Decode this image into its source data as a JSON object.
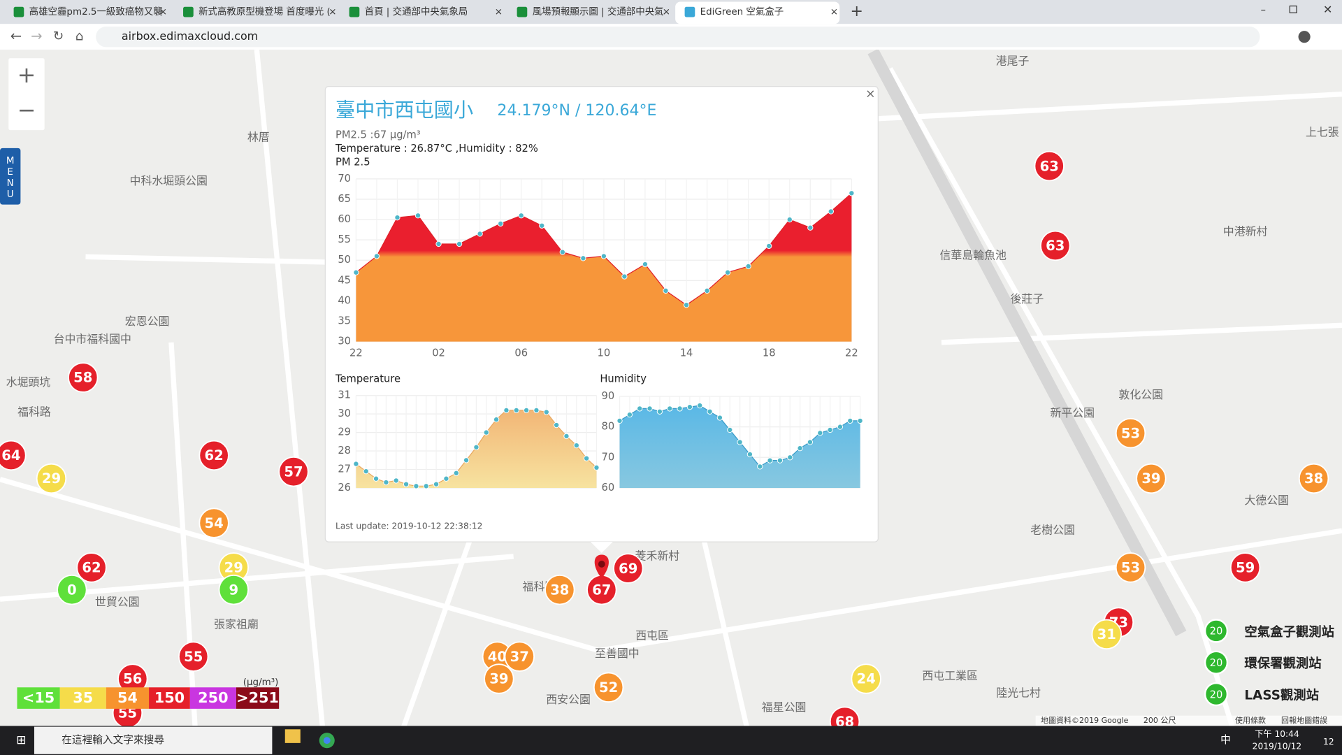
{
  "browser": {
    "tabs": [
      "高雄空霾pm2.5一級致癌物又襲",
      "新式高教原型機登場 首度曝光 (",
      "首頁 | 交通部中央氣象局",
      "風場預報顯示圖 | 交通部中央氣",
      "EdiGreen 空氣盒子"
    ],
    "url": "airbox.edimaxcloud.com"
  },
  "map": {
    "menu": "MENU",
    "labels": [
      "港尾子",
      "林厝",
      "中科水堀頭公園",
      "宏恩公園",
      "台中市福科國中",
      "水堀頭坑",
      "福科路",
      "世貿公園",
      "張家祖廟",
      "中港新村",
      "後莊子",
      "敦化公園",
      "新平公園",
      "西屯區",
      "菱禾新村",
      "西屯工業區",
      "陸光七村",
      "大德公園",
      "老樹公園",
      "上七張",
      "福星公園",
      "西安公園",
      "至善國中",
      "信華島輪魚池",
      "福科路"
    ],
    "markers": [
      {
        "value": 63,
        "color": "#e5202a"
      },
      {
        "value": 63,
        "color": "#e5202a"
      },
      {
        "value": 58,
        "color": "#e5202a"
      },
      {
        "value": 64,
        "color": "#e5202a"
      },
      {
        "value": 29,
        "color": "#f5dc4a"
      },
      {
        "value": 62,
        "color": "#e5202a"
      },
      {
        "value": 57,
        "color": "#e5202a"
      },
      {
        "value": 54,
        "color": "#f7932e"
      },
      {
        "value": 62,
        "color": "#e5202a"
      },
      {
        "value": 0,
        "color": "#5fe03a"
      },
      {
        "value": 29,
        "color": "#f5dc4a"
      },
      {
        "value": 9,
        "color": "#5fe03a"
      },
      {
        "value": 55,
        "color": "#e5202a"
      },
      {
        "value": 56,
        "color": "#e5202a"
      },
      {
        "value": 55,
        "color": "#e5202a"
      },
      {
        "value": 38,
        "color": "#f7932e"
      },
      {
        "value": 69,
        "color": "#e5202a"
      },
      {
        "value": 40,
        "color": "#f7932e"
      },
      {
        "value": 37,
        "color": "#f7932e"
      },
      {
        "value": 39,
        "color": "#f7932e"
      },
      {
        "value": 52,
        "color": "#f7932e"
      },
      {
        "value": 24,
        "color": "#f5dc4a"
      },
      {
        "value": 68,
        "color": "#e5202a"
      },
      {
        "value": 53,
        "color": "#f7932e"
      },
      {
        "value": 39,
        "color": "#f7932e"
      },
      {
        "value": 38,
        "color": "#f7932e"
      },
      {
        "value": 53,
        "color": "#f7932e"
      },
      {
        "value": 59,
        "color": "#e5202a"
      },
      {
        "value": 73,
        "color": "#e5202a"
      },
      {
        "value": 31,
        "color": "#f5dc4a"
      },
      {
        "value": 67,
        "color": "#e5202a"
      }
    ],
    "legend": {
      "unit": "(μg/m³)",
      "items": [
        {
          "label": "<15",
          "color": "#5fe03a"
        },
        {
          "label": "35",
          "color": "#f5dc4a"
        },
        {
          "label": "54",
          "color": "#f7932e"
        },
        {
          "label": "150",
          "color": "#e5202a"
        },
        {
          "label": "250",
          "color": "#c936e0"
        },
        {
          "label": ">251",
          "color": "#8b0b1a"
        }
      ]
    },
    "stations": {
      "badge": "20",
      "items": [
        "空氣盒子觀測站",
        "環保署觀測站",
        "LASS觀測站"
      ]
    },
    "footer": [
      "地圖資料©2019 Google",
      "200 公尺",
      "使用條款",
      "回報地圖錯誤"
    ]
  },
  "popup": {
    "title": "臺中市西屯國小",
    "coords": "24.179°N / 120.64°E",
    "pm_line": "PM2.5 :67 μg/m³",
    "env_line": "Temperature : 26.87°C ,Humidity : 82%",
    "last_update": "Last update: 2019-10-12 22:38:12",
    "pm": {
      "type": "area",
      "title": "PM 2.5",
      "x_labels": [
        "22",
        "02",
        "06",
        "10",
        "14",
        "18",
        "22"
      ],
      "values": [
        47,
        51,
        60.5,
        61,
        54,
        54,
        56.5,
        59,
        61,
        58.5,
        52,
        50.5,
        51,
        46,
        49,
        42.5,
        39,
        42.5,
        47,
        48.5,
        53.5,
        60,
        58,
        62,
        66.5
      ],
      "ylim": [
        30,
        70
      ],
      "yticks": [
        30,
        35,
        40,
        45,
        50,
        55,
        60,
        65,
        70
      ]
    },
    "temperature": {
      "type": "area",
      "title": "Temperature",
      "values": [
        27.3,
        26.9,
        26.5,
        26.3,
        26.4,
        26.2,
        26.1,
        26.1,
        26.2,
        26.5,
        26.8,
        27.5,
        28.2,
        29.0,
        29.7,
        30.2,
        30.2,
        30.2,
        30.2,
        30.1,
        29.4,
        28.8,
        28.3,
        27.6,
        27.1
      ],
      "ylim": [
        26,
        31
      ],
      "yticks": [
        26,
        27,
        28,
        29,
        30,
        31
      ]
    },
    "humidity": {
      "type": "area",
      "title": "Humidity",
      "values": [
        82,
        84,
        86,
        86,
        85,
        86,
        86,
        86.5,
        87,
        85,
        83,
        79,
        75,
        71,
        67,
        69,
        69,
        70,
        73,
        75,
        78,
        79,
        80,
        82,
        82
      ],
      "ylim": [
        60,
        90
      ],
      "yticks": [
        60,
        70,
        80,
        90
      ]
    }
  },
  "taskbar": {
    "search": "在這裡輸入文字來搜尋",
    "time": "下午 10:44",
    "date": "2019/10/12",
    "ime": "中",
    "notif": "12"
  }
}
